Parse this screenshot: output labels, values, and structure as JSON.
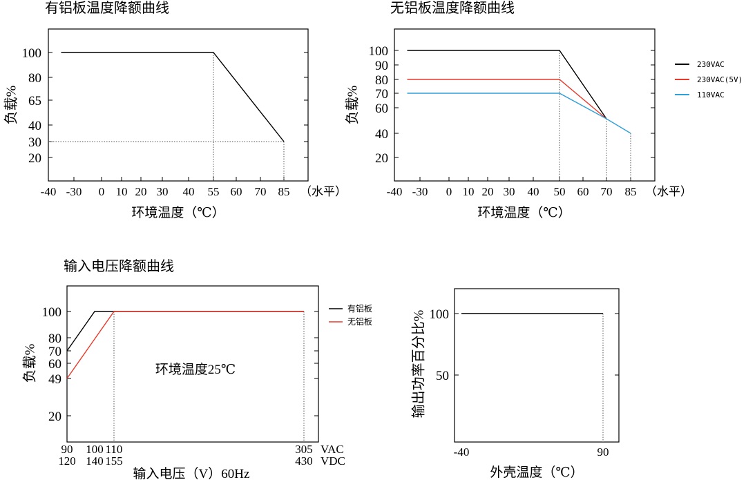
{
  "chart_data": [
    {
      "type": "line",
      "title": "有铝板温度降额曲线",
      "xlabel": "环境温度（℃）",
      "ylabel": "负载%",
      "xlim": [
        -40,
        85
      ],
      "x_ticks": [
        "-40",
        "-30",
        "0",
        "10",
        "20",
        "30",
        "40",
        "55",
        "60",
        "70",
        "85"
      ],
      "x_suffix": "（水平）",
      "y_ticks": [
        "100",
        "80",
        "65",
        "40",
        "30",
        "20"
      ],
      "series": [
        {
          "x": [
            -35,
            55,
            85
          ],
          "y": [
            100,
            100,
            30
          ],
          "color": "#000000"
        }
      ],
      "guides": [
        "x=55",
        "x=85",
        "y=30"
      ],
      "legend": null,
      "grid": false
    },
    {
      "type": "line",
      "title": "无铝板温度降额曲线",
      "xlabel": "环境温度（℃）",
      "ylabel": "负载%",
      "xlim": [
        -40,
        85
      ],
      "x_ticks": [
        "-40",
        "-30",
        "0",
        "10",
        "20",
        "30",
        "40",
        "50",
        "60",
        "70",
        "85"
      ],
      "x_suffix": "（水平）",
      "y_ticks": [
        "100",
        "90",
        "80",
        "70",
        "60",
        "40",
        "20"
      ],
      "series": [
        {
          "name": "230VAC",
          "x": [
            -35,
            50,
            70
          ],
          "y": [
            100,
            100,
            50
          ],
          "color": "#000000"
        },
        {
          "name": "230VAC(5V)",
          "x": [
            -35,
            50,
            70
          ],
          "y": [
            80,
            80,
            50
          ],
          "color": "#e8392a"
        },
        {
          "name": "110VAC",
          "x": [
            -35,
            50,
            70,
            85
          ],
          "y": [
            70,
            70,
            50,
            40
          ],
          "color": "#2e9fd8"
        }
      ],
      "guides": [
        "x=50",
        "x=70",
        "x=85"
      ],
      "legend": "right",
      "grid": false
    },
    {
      "type": "line",
      "title": "输入电压降额曲线",
      "xlabel": "输入电压（V）60Hz",
      "ylabel": "负载%",
      "x_ticks_vac": [
        "90",
        "100",
        "110",
        "305"
      ],
      "x_ticks_vdc": [
        "120",
        "140",
        "155",
        "430"
      ],
      "x_unit_vac": "VAC",
      "x_unit_vdc": "VDC",
      "y_ticks": [
        "100",
        "80",
        "70",
        "60",
        "49",
        "20"
      ],
      "annotation": "环境温度25℃",
      "series": [
        {
          "name": "有铝板",
          "x": [
            90,
            100,
            305
          ],
          "y": [
            70,
            100,
            100
          ],
          "color": "#000000"
        },
        {
          "name": "无铝板",
          "x": [
            90,
            110,
            305
          ],
          "y": [
            49,
            100,
            100
          ],
          "color": "#e8392a"
        }
      ],
      "guides": [
        "x=110"
      ],
      "legend": "right",
      "grid": false
    },
    {
      "type": "line",
      "title": "",
      "xlabel": "外壳温度（℃）",
      "ylabel": "输出功率百分比%",
      "x_ticks": [
        "-40",
        "90"
      ],
      "y_ticks": [
        "100",
        "50"
      ],
      "series": [
        {
          "x": [
            -40,
            90
          ],
          "y": [
            100,
            100
          ],
          "color": "#000000"
        }
      ],
      "guides": [
        "x=90"
      ],
      "legend": null,
      "grid": false
    }
  ]
}
